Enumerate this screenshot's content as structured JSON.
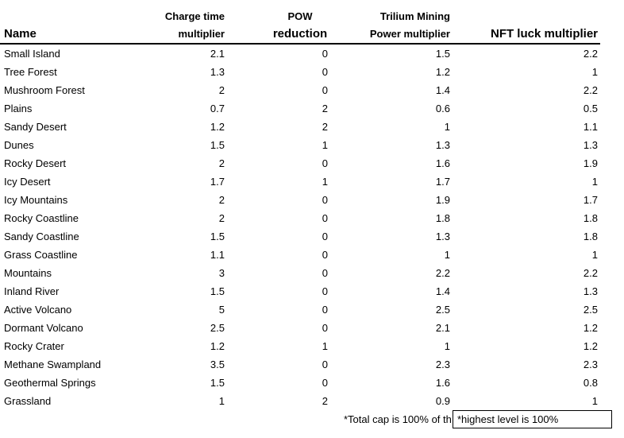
{
  "app": {
    "background_color": "#ffffff",
    "text_color": "#000000"
  },
  "table": {
    "header": {
      "name": "Name",
      "col_charge": {
        "line1": "Charge time",
        "line2": "multiplier"
      },
      "col_pow": {
        "line1": "POW",
        "line2": "reduction"
      },
      "col_trilium": {
        "line1": "Trilium Mining",
        "line2": "Power multiplier"
      },
      "col_nft": "NFT luck multiplier"
    },
    "rows": [
      {
        "name": "Small Island",
        "charge": "2.1",
        "pow": "0",
        "trilium": "1.5",
        "nft": "2.2"
      },
      {
        "name": "Tree Forest",
        "charge": "1.3",
        "pow": "0",
        "trilium": "1.2",
        "nft": "1"
      },
      {
        "name": "Mushroom Forest",
        "charge": "2",
        "pow": "0",
        "trilium": "1.4",
        "nft": "2.2"
      },
      {
        "name": "Plains",
        "charge": "0.7",
        "pow": "2",
        "trilium": "0.6",
        "nft": "0.5"
      },
      {
        "name": "Sandy Desert",
        "charge": "1.2",
        "pow": "2",
        "trilium": "1",
        "nft": "1.1"
      },
      {
        "name": "Dunes",
        "charge": "1.5",
        "pow": "1",
        "trilium": "1.3",
        "nft": "1.3"
      },
      {
        "name": "Rocky Desert",
        "charge": "2",
        "pow": "0",
        "trilium": "1.6",
        "nft": "1.9"
      },
      {
        "name": "Icy Desert",
        "charge": "1.7",
        "pow": "1",
        "trilium": "1.7",
        "nft": "1"
      },
      {
        "name": "Icy Mountains",
        "charge": "2",
        "pow": "0",
        "trilium": "1.9",
        "nft": "1.7"
      },
      {
        "name": "Rocky Coastline",
        "charge": "2",
        "pow": "0",
        "trilium": "1.8",
        "nft": "1.8"
      },
      {
        "name": "Sandy Coastline",
        "charge": "1.5",
        "pow": "0",
        "trilium": "1.3",
        "nft": "1.8"
      },
      {
        "name": "Grass Coastline",
        "charge": "1.1",
        "pow": "0",
        "trilium": "1",
        "nft": "1"
      },
      {
        "name": "Mountains",
        "charge": "3",
        "pow": "0",
        "trilium": "2.2",
        "nft": "2.2"
      },
      {
        "name": "Inland River",
        "charge": "1.5",
        "pow": "0",
        "trilium": "1.4",
        "nft": "1.3"
      },
      {
        "name": "Active Volcano",
        "charge": "5",
        "pow": "0",
        "trilium": "2.5",
        "nft": "2.5"
      },
      {
        "name": "Dormant Volcano",
        "charge": "2.5",
        "pow": "0",
        "trilium": "2.1",
        "nft": "1.2"
      },
      {
        "name": "Rocky Crater",
        "charge": "1.2",
        "pow": "1",
        "trilium": "1",
        "nft": "1.2"
      },
      {
        "name": "Methane Swampland",
        "charge": "3.5",
        "pow": "0",
        "trilium": "2.3",
        "nft": "2.3"
      },
      {
        "name": "Geothermal Springs",
        "charge": "1.5",
        "pow": "0",
        "trilium": "1.6",
        "nft": "0.8"
      },
      {
        "name": "Grassland",
        "charge": "1",
        "pow": "2",
        "trilium": "0.9",
        "nft": "1"
      }
    ]
  },
  "footnotes": {
    "truncated_note": "*Total cap is 100% of th",
    "active_cell_note": "*highest level is 100%"
  }
}
